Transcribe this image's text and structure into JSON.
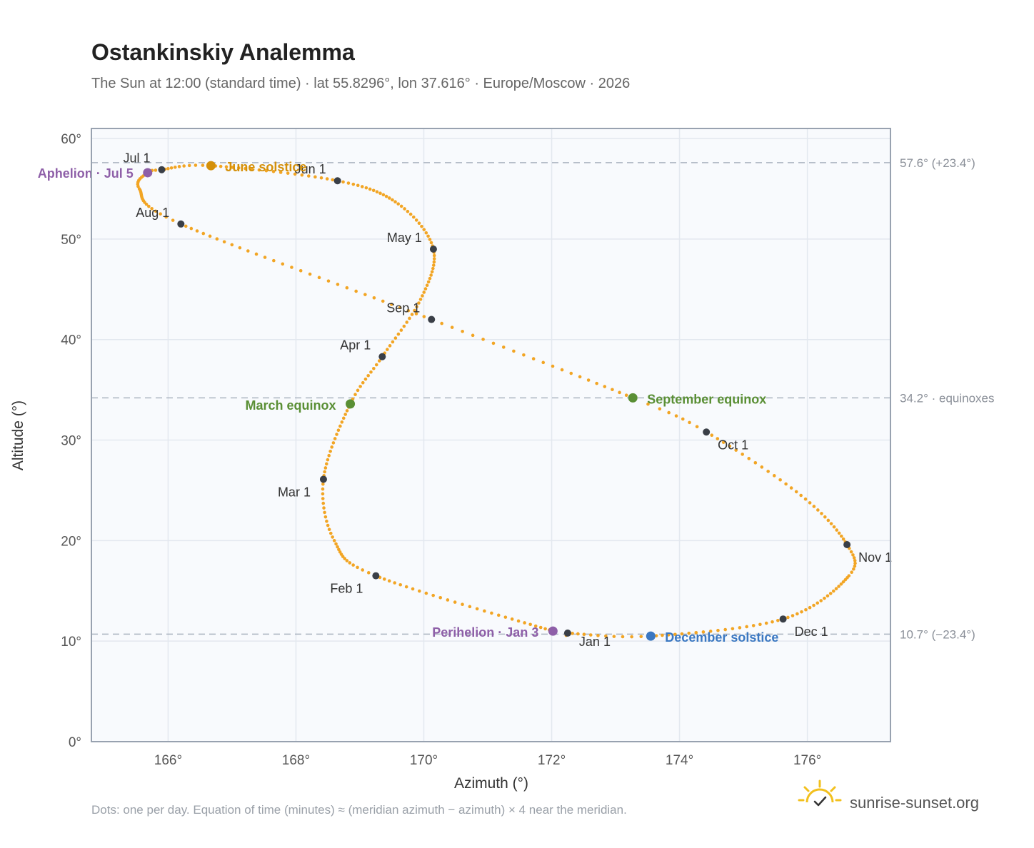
{
  "chart_data": {
    "type": "scatter",
    "title": "Ostankinskiy Analemma",
    "subtitle": "The Sun at 12:00 (standard time) · lat 55.8296°, lon 37.616° · Europe/Moscow · 2026",
    "xlabel": "Azimuth (°)",
    "ylabel": "Altitude (°)",
    "xlim": [
      164.8,
      177.3
    ],
    "ylim": [
      0,
      61
    ],
    "x_ticks": [
      166,
      168,
      170,
      172,
      174,
      176
    ],
    "x_tick_labels": [
      "166°",
      "168°",
      "170°",
      "172°",
      "174°",
      "176°"
    ],
    "y_ticks": [
      0,
      10,
      20,
      30,
      40,
      50,
      60
    ],
    "y_tick_labels": [
      "0°",
      "10°",
      "20°",
      "30°",
      "40°",
      "50°",
      "60°"
    ],
    "grid": true,
    "series": [
      {
        "color": "#f2a524",
        "points_per_day": 1,
        "anchor_days": [
          {
            "day": 1,
            "az": 172.25,
            "alt": 10.8
          },
          {
            "day": 3,
            "az": 172.02,
            "alt": 11.0
          },
          {
            "day": 32,
            "az": 169.25,
            "alt": 16.5
          },
          {
            "day": 46,
            "az": 168.6,
            "alt": 20.0
          },
          {
            "day": 60,
            "az": 168.43,
            "alt": 26.1
          },
          {
            "day": 79,
            "az": 168.85,
            "alt": 33.6
          },
          {
            "day": 91,
            "az": 169.35,
            "alt": 38.3
          },
          {
            "day": 106,
            "az": 169.95,
            "alt": 44.0
          },
          {
            "day": 121,
            "az": 170.15,
            "alt": 49.0
          },
          {
            "day": 136,
            "az": 169.6,
            "alt": 53.5
          },
          {
            "day": 152,
            "az": 168.65,
            "alt": 55.8
          },
          {
            "day": 172,
            "az": 166.67,
            "alt": 57.3
          },
          {
            "day": 182,
            "az": 165.9,
            "alt": 56.9
          },
          {
            "day": 186,
            "az": 165.68,
            "alt": 56.6
          },
          {
            "day": 196,
            "az": 165.55,
            "alt": 55.0
          },
          {
            "day": 213,
            "az": 166.2,
            "alt": 51.5
          },
          {
            "day": 244,
            "az": 170.12,
            "alt": 42.0
          },
          {
            "day": 266,
            "az": 173.27,
            "alt": 34.2
          },
          {
            "day": 274,
            "az": 174.42,
            "alt": 30.8
          },
          {
            "day": 290,
            "az": 175.9,
            "alt": 24.5
          },
          {
            "day": 305,
            "az": 176.62,
            "alt": 19.6
          },
          {
            "day": 315,
            "az": 176.65,
            "alt": 16.5
          },
          {
            "day": 335,
            "az": 175.62,
            "alt": 12.2
          },
          {
            "day": 355,
            "az": 173.55,
            "alt": 10.5
          },
          {
            "day": 366,
            "az": 172.25,
            "alt": 10.8
          }
        ]
      }
    ],
    "month_markers": [
      {
        "label": "Jan 1",
        "az": 172.25,
        "alt": 10.8
      },
      {
        "label": "Feb 1",
        "az": 169.25,
        "alt": 16.5
      },
      {
        "label": "Mar 1",
        "az": 168.43,
        "alt": 26.1
      },
      {
        "label": "Apr 1",
        "az": 169.35,
        "alt": 38.3
      },
      {
        "label": "May 1",
        "az": 170.15,
        "alt": 49.0
      },
      {
        "label": "Jun 1",
        "az": 168.65,
        "alt": 55.8
      },
      {
        "label": "Jul 1",
        "az": 165.9,
        "alt": 56.9
      },
      {
        "label": "Aug 1",
        "az": 166.2,
        "alt": 51.5
      },
      {
        "label": "Sep 1",
        "az": 170.12,
        "alt": 42.0
      },
      {
        "label": "Oct 1",
        "az": 174.42,
        "alt": 30.8
      },
      {
        "label": "Nov 1",
        "az": 176.62,
        "alt": 19.6
      },
      {
        "label": "Dec 1",
        "az": 175.62,
        "alt": 12.2
      }
    ],
    "events": [
      {
        "label": "June solstice",
        "az": 166.67,
        "alt": 57.3,
        "color": "#d4900a"
      },
      {
        "label": "Aphelion · Jul 5",
        "az": 165.68,
        "alt": 56.6,
        "color": "#8e5fa8"
      },
      {
        "label": "March equinox",
        "az": 168.85,
        "alt": 33.6,
        "color": "#5a8f35"
      },
      {
        "label": "September equinox",
        "az": 173.27,
        "alt": 34.2,
        "color": "#5a8f35"
      },
      {
        "label": "Perihelion · Jan 3",
        "az": 172.02,
        "alt": 11.0,
        "color": "#8e5fa8"
      },
      {
        "label": "December solstice",
        "az": 173.55,
        "alt": 10.5,
        "color": "#3b78c2"
      }
    ],
    "reference_lines": [
      {
        "alt": 57.6,
        "label": "57.6° (+23.4°)"
      },
      {
        "alt": 34.2,
        "label": "34.2° · equinoxes"
      },
      {
        "alt": 10.7,
        "label": "10.7° (−23.4°)"
      }
    ],
    "footnote": "Dots: one per day. Equation of time (minutes) ≈ (meridian azimuth − azimuth) × 4 near the meridian."
  },
  "branding": {
    "site": "sunrise-sunset.org",
    "logo_icon": "sun-check-icon",
    "logo_color": "#f2c01e"
  }
}
